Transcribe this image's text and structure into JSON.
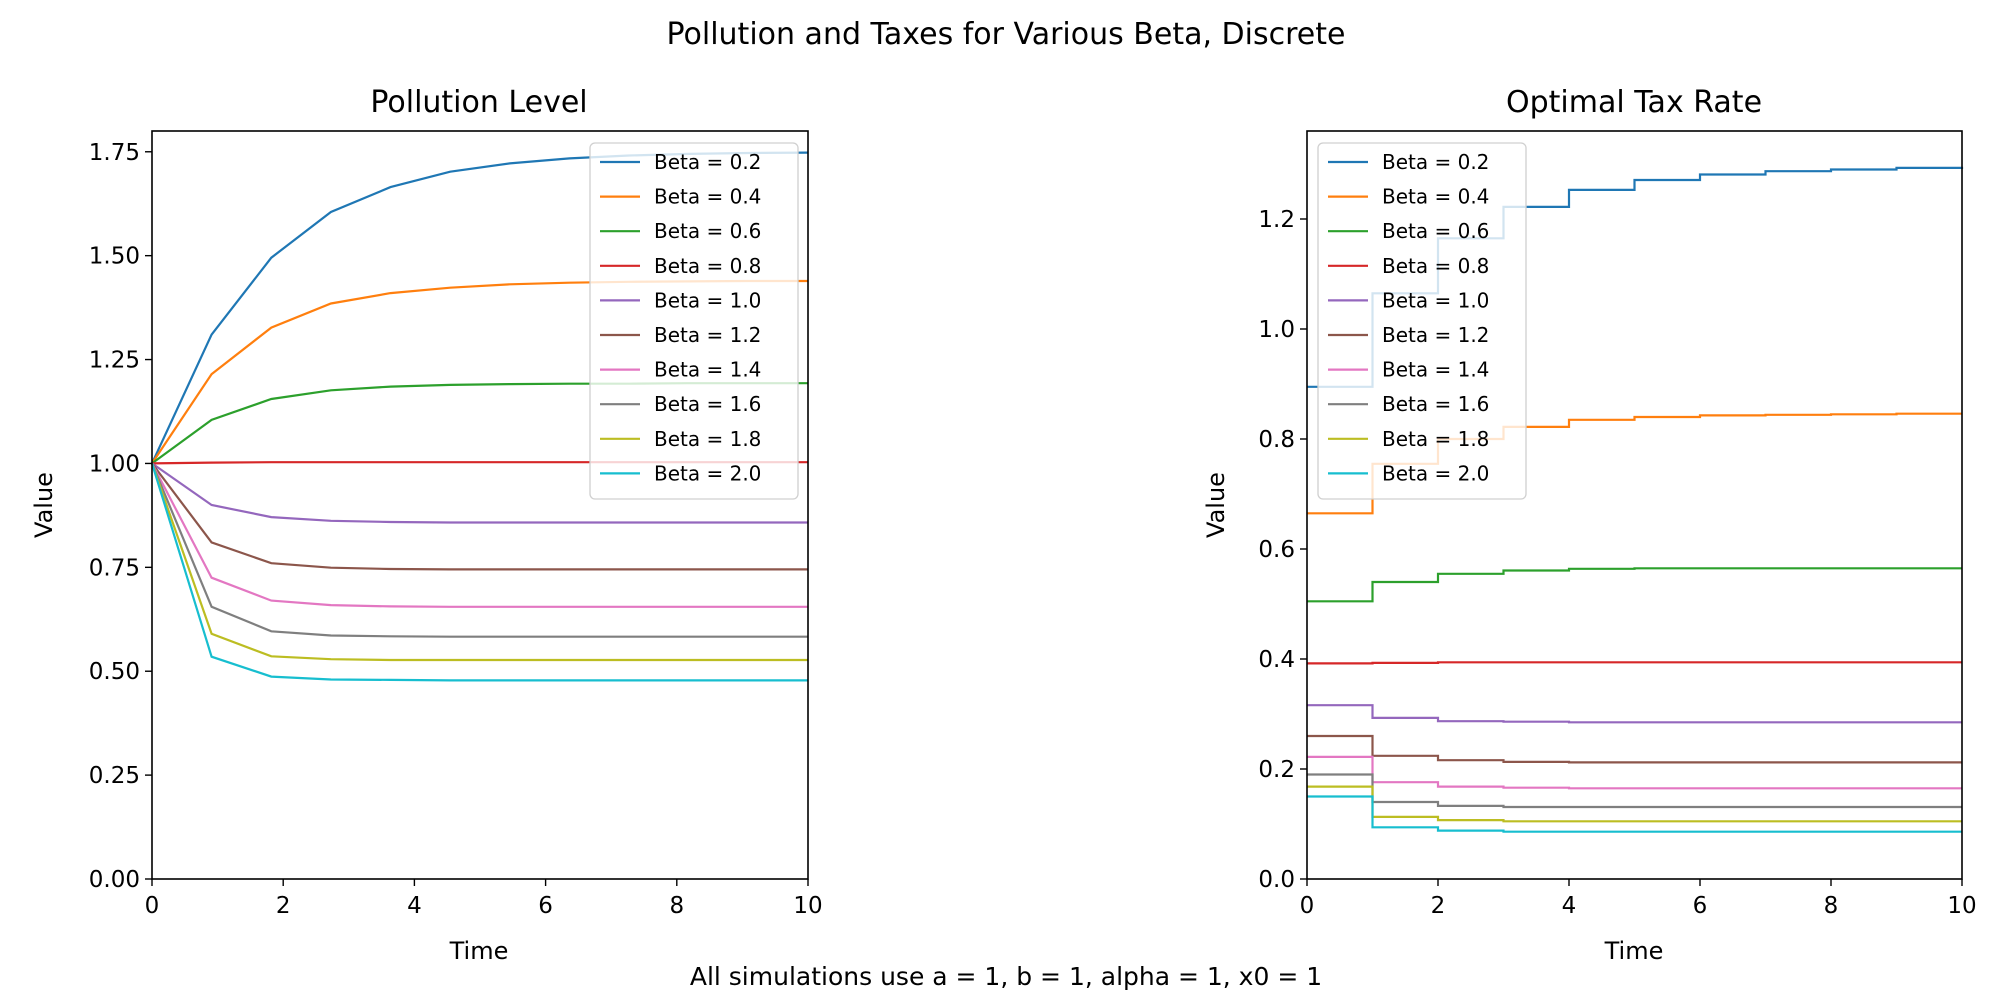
{
  "figure": {
    "suptitle": "Pollution and Taxes for Various Beta, Discrete",
    "footnote": "All simulations use a = 1, b = 1, alpha = 1, x0 = 1"
  },
  "chart_data": [
    {
      "type": "line",
      "title": "Pollution Level",
      "xlabel": "Time",
      "ylabel": "Value",
      "xlim": [
        0,
        10
      ],
      "ylim": [
        0,
        1.8
      ],
      "xticks": [
        0,
        2,
        4,
        6,
        8,
        10
      ],
      "xtick_labels": [
        "0",
        "2",
        "4",
        "6",
        "8",
        "10"
      ],
      "yticks": [
        0,
        0.25,
        0.5,
        0.75,
        1.0,
        1.25,
        1.5,
        1.75
      ],
      "ytick_labels": [
        "0.00",
        "0.25",
        "0.50",
        "0.75",
        "1.00",
        "1.25",
        "1.50",
        "1.75"
      ],
      "legend_position": "top-right",
      "x": [
        0,
        0.909,
        1.818,
        2.727,
        3.636,
        4.545,
        5.455,
        6.364,
        7.273,
        8.182,
        9.091,
        10
      ],
      "series": [
        {
          "name": "Beta = 0.2",
          "color": "#1f77b4",
          "values": [
            1.0,
            1.31,
            1.495,
            1.605,
            1.665,
            1.702,
            1.722,
            1.734,
            1.741,
            1.745,
            1.747,
            1.748
          ]
        },
        {
          "name": "Beta = 0.4",
          "color": "#ff7f0e",
          "values": [
            1.0,
            1.215,
            1.327,
            1.385,
            1.41,
            1.423,
            1.431,
            1.435,
            1.437,
            1.438,
            1.439,
            1.439
          ]
        },
        {
          "name": "Beta = 0.6",
          "color": "#2ca02c",
          "values": [
            1.0,
            1.105,
            1.155,
            1.176,
            1.185,
            1.189,
            1.191,
            1.192,
            1.192,
            1.193,
            1.193,
            1.193
          ]
        },
        {
          "name": "Beta = 0.8",
          "color": "#d62728",
          "values": [
            1.0,
            1.002,
            1.003,
            1.003,
            1.003,
            1.003,
            1.003,
            1.003,
            1.003,
            1.003,
            1.003,
            1.003
          ]
        },
        {
          "name": "Beta = 1.0",
          "color": "#9467bd",
          "values": [
            1.0,
            0.9,
            0.871,
            0.862,
            0.859,
            0.858,
            0.858,
            0.858,
            0.858,
            0.858,
            0.858,
            0.858
          ]
        },
        {
          "name": "Beta = 1.2",
          "color": "#8c564b",
          "values": [
            1.0,
            0.81,
            0.76,
            0.749,
            0.746,
            0.745,
            0.745,
            0.745,
            0.745,
            0.745,
            0.745,
            0.745
          ]
        },
        {
          "name": "Beta = 1.4",
          "color": "#e377c2",
          "values": [
            1.0,
            0.725,
            0.67,
            0.659,
            0.656,
            0.655,
            0.655,
            0.655,
            0.655,
            0.655,
            0.655,
            0.655
          ]
        },
        {
          "name": "Beta = 1.6",
          "color": "#7f7f7f",
          "values": [
            1.0,
            0.655,
            0.596,
            0.586,
            0.584,
            0.583,
            0.583,
            0.583,
            0.583,
            0.583,
            0.583,
            0.583
          ]
        },
        {
          "name": "Beta = 1.8",
          "color": "#bcbd22",
          "values": [
            1.0,
            0.59,
            0.536,
            0.529,
            0.527,
            0.527,
            0.527,
            0.527,
            0.527,
            0.527,
            0.527,
            0.527
          ]
        },
        {
          "name": "Beta = 2.0",
          "color": "#17becf",
          "values": [
            1.0,
            0.535,
            0.487,
            0.48,
            0.479,
            0.478,
            0.478,
            0.478,
            0.478,
            0.478,
            0.478,
            0.478
          ]
        }
      ]
    },
    {
      "type": "line",
      "step": "post",
      "title": "Optimal Tax Rate",
      "xlabel": "Time",
      "ylabel": "Value",
      "xlim": [
        0,
        10
      ],
      "ylim": [
        0,
        1.36
      ],
      "xticks": [
        0,
        2,
        4,
        6,
        8,
        10
      ],
      "xtick_labels": [
        "0",
        "2",
        "4",
        "6",
        "8",
        "10"
      ],
      "yticks": [
        0,
        0.2,
        0.4,
        0.6,
        0.8,
        1.0,
        1.2
      ],
      "ytick_labels": [
        "0.0",
        "0.2",
        "0.4",
        "0.6",
        "0.8",
        "1.0",
        "1.2"
      ],
      "legend_position": "top-left",
      "x": [
        0,
        1,
        2,
        3,
        4,
        5,
        6,
        7,
        8,
        9,
        10
      ],
      "series": [
        {
          "name": "Beta = 0.2",
          "color": "#1f77b4",
          "values": [
            0.895,
            1.065,
            1.165,
            1.222,
            1.253,
            1.271,
            1.281,
            1.287,
            1.29,
            1.293,
            1.295
          ]
        },
        {
          "name": "Beta = 0.4",
          "color": "#ff7f0e",
          "values": [
            0.665,
            0.755,
            0.8,
            0.822,
            0.835,
            0.84,
            0.843,
            0.844,
            0.845,
            0.846,
            0.846
          ]
        },
        {
          "name": "Beta = 0.6",
          "color": "#2ca02c",
          "values": [
            0.505,
            0.54,
            0.555,
            0.561,
            0.564,
            0.565,
            0.565,
            0.565,
            0.565,
            0.565,
            0.565
          ]
        },
        {
          "name": "Beta = 0.8",
          "color": "#d62728",
          "values": [
            0.392,
            0.393,
            0.394,
            0.394,
            0.394,
            0.394,
            0.394,
            0.394,
            0.394,
            0.394,
            0.394
          ]
        },
        {
          "name": "Beta = 1.0",
          "color": "#9467bd",
          "values": [
            0.316,
            0.293,
            0.287,
            0.286,
            0.285,
            0.285,
            0.285,
            0.285,
            0.285,
            0.285,
            0.285
          ]
        },
        {
          "name": "Beta = 1.2",
          "color": "#8c564b",
          "values": [
            0.26,
            0.224,
            0.216,
            0.213,
            0.212,
            0.212,
            0.212,
            0.212,
            0.212,
            0.212,
            0.212
          ]
        },
        {
          "name": "Beta = 1.4",
          "color": "#e377c2",
          "values": [
            0.222,
            0.176,
            0.168,
            0.166,
            0.165,
            0.165,
            0.165,
            0.165,
            0.165,
            0.165,
            0.165
          ]
        },
        {
          "name": "Beta = 1.6",
          "color": "#7f7f7f",
          "values": [
            0.19,
            0.14,
            0.133,
            0.131,
            0.131,
            0.131,
            0.131,
            0.131,
            0.131,
            0.131,
            0.131
          ]
        },
        {
          "name": "Beta = 1.8",
          "color": "#bcbd22",
          "values": [
            0.168,
            0.113,
            0.107,
            0.105,
            0.105,
            0.105,
            0.105,
            0.105,
            0.105,
            0.105,
            0.105
          ]
        },
        {
          "name": "Beta = 2.0",
          "color": "#17becf",
          "values": [
            0.15,
            0.094,
            0.088,
            0.086,
            0.086,
            0.086,
            0.086,
            0.086,
            0.086,
            0.086,
            0.086
          ]
        }
      ]
    }
  ]
}
